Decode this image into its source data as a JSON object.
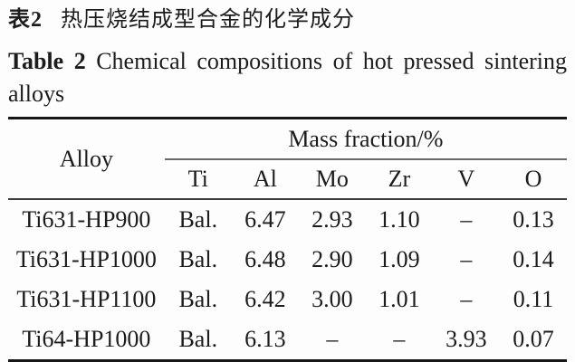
{
  "title_cn": {
    "label": "表2",
    "text": "热压烧结成型合金的化学成分"
  },
  "caption_en": {
    "line1_words": [
      "Table",
      "2",
      "Chemical",
      "compositions",
      "of",
      "hot",
      "pressed",
      "sintering"
    ],
    "line2": "alloys"
  },
  "table": {
    "row_header": "Alloy",
    "group_header": "Mass fraction/%",
    "columns": [
      "Ti",
      "Al",
      "Mo",
      "Zr",
      "V",
      "O"
    ],
    "rows": [
      {
        "alloy": "Ti631-HP900",
        "values": [
          "Bal.",
          "6.47",
          "2.93",
          "1.10",
          "–",
          "0.13"
        ]
      },
      {
        "alloy": "Ti631-HP1000",
        "values": [
          "Bal.",
          "6.48",
          "2.90",
          "1.09",
          "–",
          "0.14"
        ]
      },
      {
        "alloy": "Ti631-HP1100",
        "values": [
          "Bal.",
          "6.42",
          "3.00",
          "1.01",
          "–",
          "0.11"
        ]
      },
      {
        "alloy": "Ti64-HP1000",
        "values": [
          "Bal.",
          "6.13",
          "–",
          "–",
          "3.93",
          "0.07"
        ]
      }
    ]
  },
  "colors": {
    "background": "#fdfdfd",
    "text": "#1c1c1c",
    "rule_thick": "#161616",
    "rule_thin": "#3c3c3c",
    "rule_mid": "#6b6b6b"
  }
}
